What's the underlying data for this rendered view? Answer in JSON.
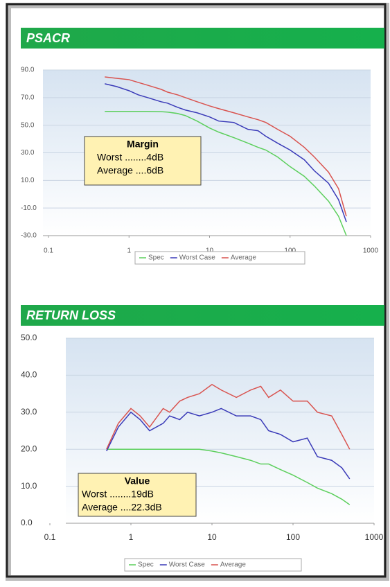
{
  "chart_data": [
    {
      "type": "line",
      "title": "PSACR",
      "xscale": "log",
      "x": [
        0.5,
        0.7,
        1,
        1.3,
        1.7,
        2.5,
        3,
        4,
        5,
        7,
        10,
        13,
        20,
        30,
        40,
        50,
        70,
        100,
        150,
        200,
        300,
        400,
        500
      ],
      "series": [
        {
          "name": "Spec",
          "color": "#5ccf5c",
          "values": [
            60,
            60,
            60,
            60,
            60,
            59.8,
            59.5,
            58.5,
            57,
            53,
            48,
            45,
            41,
            37,
            34,
            32,
            27,
            20,
            13,
            6,
            -5,
            -16,
            -30
          ]
        },
        {
          "name": "Worst Case",
          "color": "#3a3ab8",
          "values": [
            80,
            78,
            75,
            72,
            70,
            67,
            66,
            63,
            61,
            59,
            56,
            53,
            52,
            47,
            46,
            42,
            37,
            32,
            25,
            17,
            8,
            -4,
            -20
          ]
        },
        {
          "name": "Average",
          "color": "#d9534f",
          "values": [
            85,
            84,
            83,
            81,
            79,
            76,
            74,
            72,
            70,
            67,
            64,
            62,
            59,
            56,
            54,
            52,
            47,
            42,
            34,
            27,
            16,
            4,
            -16
          ]
        }
      ],
      "xlim": [
        0.1,
        1000
      ],
      "xticks": [
        0.1,
        1,
        10,
        100,
        1000
      ],
      "ylim": [
        -30,
        90
      ],
      "yticks": [
        {
          "value": -30,
          "label": "-30.0"
        },
        {
          "value": -10,
          "label": "-10.0"
        },
        {
          "value": 10,
          "label": "10.0"
        },
        {
          "value": 30,
          "label": "30.0"
        },
        {
          "value": 50,
          "label": "50.0"
        },
        {
          "value": 70,
          "label": "70.0"
        },
        {
          "value": 90,
          "label": "90.0"
        }
      ],
      "grid": true,
      "legend": "bottom",
      "annotation": {
        "title": "Margin",
        "lines": [
          "Worst ........4dB",
          "Average ....6dB"
        ]
      }
    },
    {
      "type": "line",
      "title": "RETURN LOSS",
      "xscale": "log",
      "x": [
        0.5,
        0.7,
        1,
        1.3,
        1.7,
        2.5,
        3,
        4,
        5,
        7,
        10,
        13,
        20,
        30,
        40,
        50,
        70,
        100,
        150,
        200,
        300,
        400,
        500
      ],
      "series": [
        {
          "name": "Spec",
          "color": "#5ccf5c",
          "values": [
            20,
            20,
            20,
            20,
            20,
            20,
            20,
            20,
            20,
            20,
            19.5,
            19,
            18,
            17,
            16,
            16,
            14.5,
            13,
            11,
            9.5,
            8,
            6.5,
            5
          ]
        },
        {
          "name": "Worst Case",
          "color": "#3a3ab8",
          "values": [
            19.5,
            26,
            30,
            28,
            25,
            27,
            29,
            28,
            30,
            29,
            30,
            31,
            29,
            29,
            28,
            25,
            24,
            22,
            23,
            18,
            17,
            15,
            12
          ]
        },
        {
          "name": "Average",
          "color": "#d9534f",
          "values": [
            20,
            27,
            31,
            29,
            26,
            31,
            30,
            33,
            34,
            35,
            37.5,
            36,
            34,
            36,
            37,
            34,
            36,
            33,
            33,
            30,
            29,
            24,
            20
          ]
        }
      ],
      "xlim": [
        0.1,
        1000
      ],
      "xticks": [
        0.1,
        1,
        10,
        100,
        1000
      ],
      "ylim": [
        0,
        50
      ],
      "yticks": [
        {
          "value": 0,
          "label": "0.0"
        },
        {
          "value": 10,
          "label": "10.0"
        },
        {
          "value": 20,
          "label": "20.0"
        },
        {
          "value": 30,
          "label": "30.0"
        },
        {
          "value": 40,
          "label": "40.0"
        },
        {
          "value": 50,
          "label": "50.0"
        }
      ],
      "grid": true,
      "legend": "bottom",
      "annotation": {
        "title": "Value",
        "lines": [
          "Worst ........19dB",
          "Average ....22.3dB"
        ]
      }
    }
  ]
}
